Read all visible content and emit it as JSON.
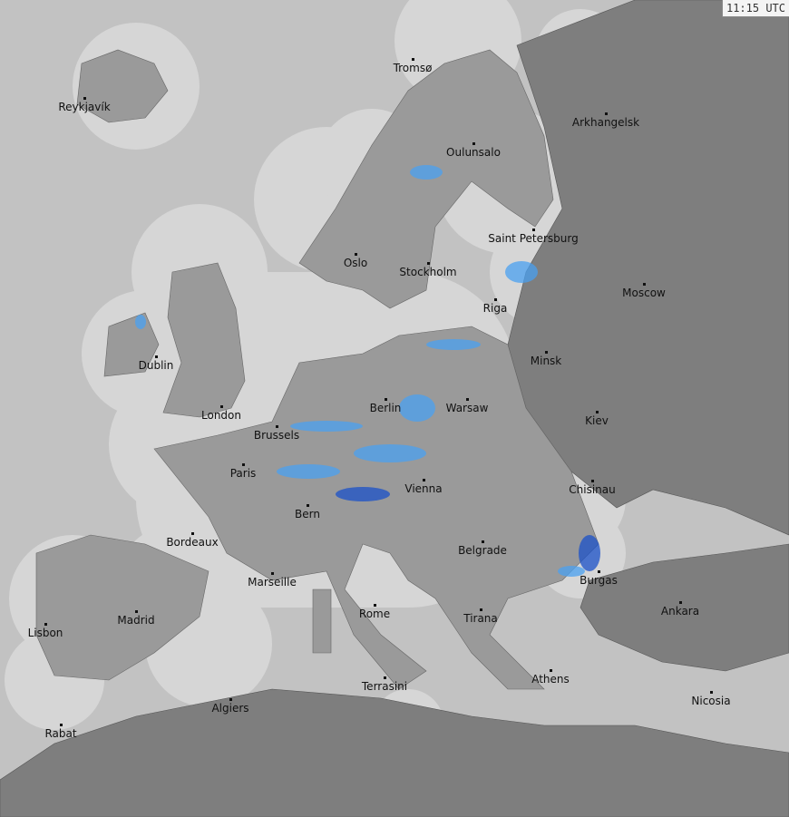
{
  "timestamp": "11:15 UTC",
  "colors": {
    "sea": "#c2c2c2",
    "coverage": "#d6d6d6",
    "land_covered": "#9a9a9a",
    "land_uncovered": "#7e7e7e",
    "precip_light": "#e8f4ff",
    "precip_mid": "#4aa0f0",
    "precip_heavy": "#1a50c8"
  },
  "cities": [
    {
      "name": "Tromsø",
      "lon": 18.96,
      "lat": 69.65
    },
    {
      "name": "Reykjavík",
      "lon": -21.9,
      "lat": 64.1
    },
    {
      "name": "Arkhangelsk",
      "lon": 40.5,
      "lat": 64.5
    },
    {
      "name": "Oulunsalo",
      "lon": 25.4,
      "lat": 64.9
    },
    {
      "name": "Saint Petersburg",
      "lon": 30.3,
      "lat": 59.9
    },
    {
      "name": "Oslo",
      "lon": 10.75,
      "lat": 59.9
    },
    {
      "name": "Stockholm",
      "lon": 18.07,
      "lat": 59.3
    },
    {
      "name": "Moscow",
      "lon": 37.6,
      "lat": 55.75
    },
    {
      "name": "Riga",
      "lon": 24.1,
      "lat": 56.95
    },
    {
      "name": "Dublin",
      "lon": -6.26,
      "lat": 53.35
    },
    {
      "name": "Minsk",
      "lon": 27.56,
      "lat": 53.9
    },
    {
      "name": "Berlin",
      "lon": 13.4,
      "lat": 52.5
    },
    {
      "name": "Warsaw",
      "lon": 21.0,
      "lat": 52.2
    },
    {
      "name": "London",
      "lon": -0.13,
      "lat": 51.5
    },
    {
      "name": "Kiev",
      "lon": 30.5,
      "lat": 50.45
    },
    {
      "name": "Brussels",
      "lon": 4.35,
      "lat": 50.85
    },
    {
      "name": "Paris",
      "lon": 2.35,
      "lat": 48.85
    },
    {
      "name": "Vienna",
      "lon": 16.37,
      "lat": 48.2
    },
    {
      "name": "Chisinau",
      "lon": 28.86,
      "lat": 47.0
    },
    {
      "name": "Bern",
      "lon": 7.45,
      "lat": 46.95
    },
    {
      "name": "Bordeaux",
      "lon": -0.58,
      "lat": 44.84
    },
    {
      "name": "Belgrade",
      "lon": 20.46,
      "lat": 44.8
    },
    {
      "name": "Burgas",
      "lon": 27.47,
      "lat": 42.5
    },
    {
      "name": "Marseille",
      "lon": 5.37,
      "lat": 43.3
    },
    {
      "name": "Ankara",
      "lon": 32.85,
      "lat": 39.93
    },
    {
      "name": "Rome",
      "lon": 12.5,
      "lat": 41.9
    },
    {
      "name": "Madrid",
      "lon": -3.7,
      "lat": 40.4
    },
    {
      "name": "Tirana",
      "lon": 19.82,
      "lat": 41.33
    },
    {
      "name": "Lisbon",
      "lon": -9.14,
      "lat": 38.72
    },
    {
      "name": "Athens",
      "lon": 23.73,
      "lat": 37.98
    },
    {
      "name": "Terrasini",
      "lon": 13.08,
      "lat": 38.15
    },
    {
      "name": "Nicosia",
      "lon": 33.36,
      "lat": 35.17
    },
    {
      "name": "Algiers",
      "lon": 3.06,
      "lat": 36.75
    },
    {
      "name": "Rabat",
      "lon": -6.85,
      "lat": 34.0
    }
  ]
}
